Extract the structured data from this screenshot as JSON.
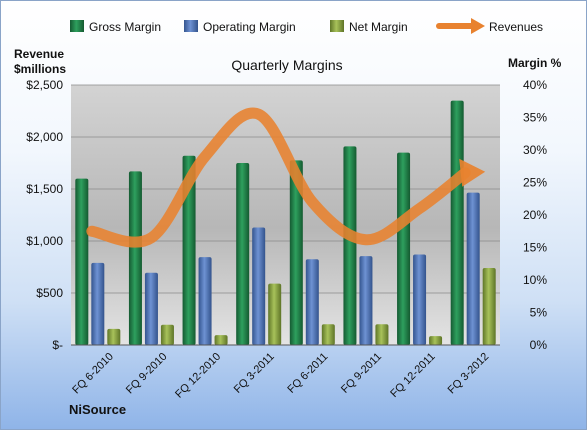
{
  "chart_data": {
    "type": "bar",
    "title": "Quarterly Margins",
    "left_axis_label_line1": "Revenue",
    "left_axis_label_line2": "$millions",
    "right_axis_label": "Margin %",
    "footer": "NiSource",
    "categories": [
      "FQ 6-2010",
      "FQ 9-2010",
      "FQ 12-2010",
      "FQ 3-2011",
      "FQ 6-2011",
      "FQ 9-2011",
      "FQ 12-2011",
      "FQ 3-2012"
    ],
    "left_ylim": [
      0,
      2500
    ],
    "left_ticks": [
      0,
      500,
      1000,
      1500,
      2000,
      2500
    ],
    "left_tick_labels": [
      "$-",
      "$500",
      "$1,000",
      "$1,500",
      "$2,000",
      "$2,500"
    ],
    "right_ylim": [
      0,
      40
    ],
    "right_ticks": [
      0,
      5,
      10,
      15,
      20,
      25,
      30,
      35,
      40
    ],
    "right_tick_labels": [
      "0%",
      "5%",
      "10%",
      "15%",
      "20%",
      "25%",
      "30%",
      "35%",
      "40%"
    ],
    "series": [
      {
        "name": "Gross Margin",
        "type": "bar",
        "axis": "left",
        "color": "#1e7a45",
        "values": [
          1600,
          1670,
          1820,
          1750,
          1775,
          1910,
          1850,
          2350
        ]
      },
      {
        "name": "Operating Margin",
        "type": "bar",
        "axis": "left",
        "color": "#4f74b8",
        "values": [
          790,
          695,
          845,
          1130,
          825,
          855,
          870,
          1465
        ]
      },
      {
        "name": "Net Margin",
        "type": "bar",
        "axis": "left",
        "color": "#8aa33f",
        "values": [
          155,
          195,
          95,
          590,
          200,
          200,
          85,
          740
        ]
      },
      {
        "name": "Revenues",
        "type": "line",
        "axis": "right",
        "color": "#e8822f",
        "values": [
          17.5,
          16.5,
          29.0,
          35.5,
          22.0,
          16.2,
          21.0,
          26.5
        ]
      }
    ],
    "grid": true,
    "legend": "top"
  }
}
